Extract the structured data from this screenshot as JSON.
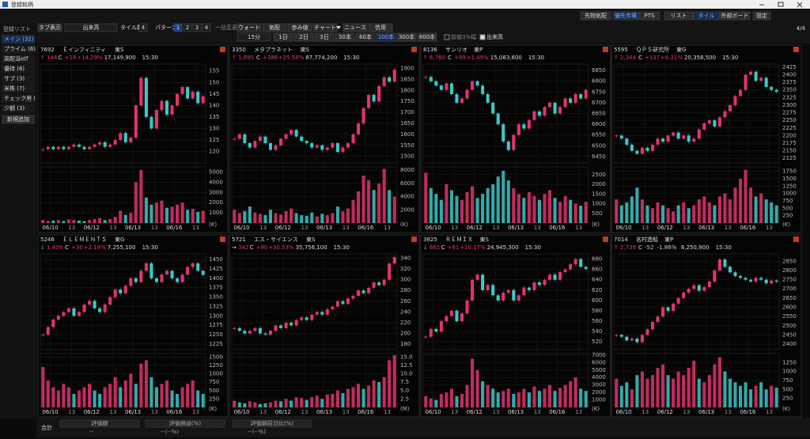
{
  "title_bar": "登録銘柄",
  "toolbar": {
    "right_buttons": [
      "先物気配",
      "優先市場",
      "PTS",
      "リスト",
      "タイル",
      "外部ボード",
      "設定"
    ],
    "tab_display": "タブ表示",
    "tab_select": "出来高",
    "tile_count_label": "タイル数",
    "tile_count": "4",
    "pattern_label": "パターン",
    "patterns": [
      "1",
      "2",
      "3",
      "4"
    ],
    "bulk_label": "一括変更",
    "bulk_buttons": [
      "ウォート",
      "気配",
      "歩み値",
      "チャート",
      "ニュース",
      "信用"
    ],
    "interval": "15分",
    "periods": [
      "1日",
      "2日",
      "3日",
      "30本",
      "60本",
      "100本",
      "300本",
      "600本"
    ],
    "check_prev": "前値3%幅",
    "check_volume": "出来高",
    "page": "4/4"
  },
  "sidebar": {
    "title": "登録リスト",
    "items": [
      "メイン (32)",
      "プライム (6)",
      "高配当etf",
      "優待 (6)",
      "サブ (3)",
      "米株 (7)",
      "チェック用 (",
      "少額 (3)"
    ],
    "add": "新規追加"
  },
  "tiles": [
    {
      "code": "7692",
      "name": "Ｅインフィニティ",
      "market": "東S",
      "arrow": "↑",
      "price": "144",
      "flag": "C",
      "change": "+18",
      "pct": "+14.29%",
      "volume": "17,149,900",
      "time": "15:30",
      "dates": [
        "06/10",
        "13",
        "06/12",
        "13",
        "06/13",
        "13",
        "06/16",
        "13"
      ],
      "volume_unit": "(K)",
      "ylim": [
        115,
        158
      ],
      "yticks": [
        120,
        125,
        130,
        135,
        140,
        145,
        150,
        155
      ],
      "vlim": [
        0,
        5500
      ],
      "vticks": [
        1000,
        2000,
        3000,
        4000,
        5000
      ],
      "close": [
        121,
        122,
        121,
        122,
        121,
        122,
        123,
        122,
        121,
        122,
        123,
        124,
        122,
        123,
        125,
        128,
        124,
        126,
        140,
        152,
        135,
        130,
        138,
        142,
        136,
        140,
        145,
        148,
        143,
        146,
        141,
        144
      ],
      "vol": [
        300,
        200,
        250,
        300,
        200,
        350,
        300,
        250,
        200,
        300,
        400,
        500,
        300,
        400,
        600,
        1200,
        800,
        1000,
        4000,
        5200,
        2500,
        1800,
        2000,
        2200,
        1500,
        1600,
        1800,
        2000,
        1300,
        1400,
        1100,
        1200
      ]
    },
    {
      "code": "3350",
      "name": "メタプラネット",
      "market": "東S",
      "arrow": "↑",
      "price": "1,895",
      "flag": "C",
      "change": "+386",
      "pct": "+25.58%",
      "volume": "87,774,200",
      "time": "15:30",
      "dates": [
        "06/10",
        "13",
        "06/12",
        "13",
        "06/13",
        "13",
        "06/16",
        "13"
      ],
      "volume_unit": "(K)",
      "ylim": [
        1470,
        1920
      ],
      "yticks": [
        1500,
        1550,
        1600,
        1650,
        1700,
        1750,
        1800,
        1850,
        1900
      ],
      "vlim": [
        0,
        8500
      ],
      "vticks": [
        2000,
        4000,
        6000,
        8000
      ],
      "close": [
        1580,
        1600,
        1560,
        1540,
        1570,
        1590,
        1560,
        1530,
        1550,
        1580,
        1600,
        1620,
        1590,
        1570,
        1560,
        1540,
        1550,
        1530,
        1540,
        1560,
        1520,
        1540,
        1560,
        1600,
        1650,
        1720,
        1780,
        1750,
        1820,
        1860,
        1840,
        1895
      ],
      "vol": [
        2000,
        1500,
        1800,
        2500,
        1600,
        1400,
        1200,
        2000,
        1500,
        1300,
        1800,
        2200,
        1500,
        1200,
        1100,
        1600,
        1000,
        1400,
        1200,
        1500,
        2500,
        1800,
        2200,
        3500,
        4800,
        7200,
        6500,
        5000,
        6000,
        8200,
        5000,
        4000
      ]
    },
    {
      "code": "8136",
      "name": "サンリオ",
      "market": "東P",
      "arrow": "↑",
      "price": "6,760",
      "flag": "C",
      "change": "+99",
      "pct": "+1.49%",
      "volume": "15,083,600",
      "time": "15:30",
      "dates": [
        "06/10",
        "13",
        "06/12",
        "13",
        "06/13",
        "13",
        "06/16",
        "13"
      ],
      "volume_unit": "(K)",
      "ylim": [
        6420,
        6880
      ],
      "yticks": [
        6450,
        6500,
        6550,
        6600,
        6650,
        6700,
        6750,
        6800,
        6850
      ],
      "vlim": [
        0,
        2900
      ],
      "vticks": [
        500,
        1000,
        1500,
        2000,
        2500
      ],
      "close": [
        6820,
        6800,
        6780,
        6760,
        6790,
        6740,
        6700,
        6720,
        6760,
        6800,
        6780,
        6740,
        6700,
        6650,
        6600,
        6520,
        6480,
        6550,
        6600,
        6580,
        6620,
        6660,
        6640,
        6680,
        6700,
        6650,
        6680,
        6720,
        6700,
        6740,
        6720,
        6760
      ],
      "vol": [
        2600,
        1800,
        1500,
        1200,
        2000,
        1700,
        1400,
        1200,
        1600,
        1900,
        1300,
        1500,
        1800,
        2000,
        2400,
        2700,
        2200,
        1800,
        1500,
        1300,
        1600,
        1400,
        1200,
        1500,
        1700,
        1300,
        1100,
        1400,
        1200,
        1000,
        900,
        1100
      ]
    },
    {
      "code": "5595",
      "name": "ＱＰＳ研究所",
      "market": "東G",
      "arrow": "↑",
      "price": "2,344",
      "flag": "C",
      "change": "+137",
      "pct": "+6.21%",
      "volume": "20,358,500",
      "time": "15:30",
      "dates": [
        "06/10",
        "13",
        "06/12",
        "13",
        "06/13",
        "13",
        "06/16",
        "13"
      ],
      "volume_unit": "(K)",
      "ylim": [
        2110,
        2435
      ],
      "yticks": [
        2125,
        2150,
        2175,
        2200,
        2225,
        2250,
        2275,
        2300,
        2325,
        2350,
        2375,
        2400,
        2425
      ],
      "vlim": [
        0,
        1900
      ],
      "vticks": [
        250,
        500,
        750,
        1000,
        1250,
        1500,
        1750
      ],
      "close": [
        2200,
        2190,
        2170,
        2150,
        2140,
        2160,
        2150,
        2170,
        2190,
        2180,
        2200,
        2210,
        2190,
        2200,
        2180,
        2190,
        2220,
        2240,
        2250,
        2230,
        2260,
        2280,
        2300,
        2330,
        2350,
        2400,
        2410,
        2380,
        2390,
        2360,
        2350,
        2344
      ],
      "vol": [
        800,
        600,
        700,
        900,
        1200,
        800,
        600,
        500,
        700,
        600,
        500,
        400,
        600,
        700,
        500,
        600,
        800,
        900,
        700,
        600,
        900,
        1000,
        800,
        1200,
        1500,
        1800,
        1200,
        900,
        1000,
        800,
        700,
        600
      ]
    },
    {
      "code": "5246",
      "name": "ＥＬＥＭＥＮＴＳ",
      "market": "東G",
      "arrow": "↓",
      "price": "1,409",
      "flag": "C",
      "change": "+30",
      "pct": "+2.18%",
      "volume": "7,255,100",
      "time": "15:30",
      "dates": [
        "06/10",
        "13",
        "06/12",
        "13",
        "06/13",
        "13",
        "06/16",
        "13"
      ],
      "volume_unit": "(K)",
      "ylim": [
        1210,
        1465
      ],
      "yticks": [
        1225,
        1250,
        1275,
        1300,
        1325,
        1350,
        1375,
        1400,
        1425,
        1450
      ],
      "vlim": [
        0,
        1600
      ],
      "vticks": [
        250,
        500,
        750,
        1000,
        1250,
        1500
      ],
      "close": [
        1250,
        1270,
        1290,
        1300,
        1310,
        1320,
        1300,
        1310,
        1330,
        1340,
        1320,
        1310,
        1330,
        1350,
        1370,
        1360,
        1380,
        1400,
        1390,
        1420,
        1440,
        1400,
        1390,
        1410,
        1420,
        1400,
        1390,
        1410,
        1430,
        1440,
        1420,
        1409
      ],
      "vol": [
        1200,
        800,
        600,
        500,
        700,
        600,
        400,
        500,
        600,
        700,
        500,
        400,
        600,
        700,
        900,
        600,
        800,
        1000,
        700,
        1300,
        1400,
        900,
        600,
        700,
        800,
        500,
        400,
        600,
        700,
        800,
        500,
        400
      ]
    },
    {
      "code": "5721",
      "name": "エス・サイエンス",
      "market": "東S",
      "arrow": "→",
      "price": "342",
      "flag": "C",
      "change": "+80",
      "pct": "+30.53%",
      "volume": "35,756,100",
      "time": "15:30",
      "dates": [
        "06/10",
        "13",
        "06/12",
        "13",
        "06/13",
        "13",
        "06/16",
        "13"
      ],
      "volume_unit": "(M)",
      "ylim": [
        170,
        348
      ],
      "yticks": [
        180,
        200,
        220,
        240,
        260,
        280,
        300,
        320,
        340
      ],
      "vlim": [
        0,
        16
      ],
      "vticks": [
        2.5,
        {
          "value": 5,
          "label": "5.0"
        },
        7.5,
        {
          "value": 10,
          "label": "10.0"
        },
        12.5,
        {
          "value": 15,
          "label": "15.0"
        }
      ],
      "close": [
        210,
        205,
        200,
        205,
        210,
        200,
        198,
        205,
        215,
        210,
        220,
        215,
        225,
        230,
        225,
        235,
        240,
        235,
        245,
        250,
        260,
        255,
        265,
        270,
        280,
        275,
        285,
        295,
        290,
        300,
        330,
        342
      ],
      "vol": [
        2.0,
        1.5,
        1.2,
        1.8,
        1.5,
        1.0,
        1.2,
        1.5,
        2.0,
        1.8,
        2.5,
        2.0,
        3.0,
        2.8,
        2.2,
        3.0,
        3.5,
        2.5,
        3.8,
        4.0,
        5.0,
        4.2,
        5.5,
        6.0,
        7.0,
        5.5,
        6.5,
        8.0,
        7.5,
        9.0,
        14.0,
        15.5
      ]
    },
    {
      "code": "3825",
      "name": "ＲＥＭＩＸ",
      "market": "東S",
      "arrow": "↓",
      "price": "661",
      "flag": "C",
      "change": "+61",
      "pct": "+10.17%",
      "volume": "24,945,300",
      "time": "15:30",
      "dates": [
        "06/10",
        "13",
        "06/12",
        "13",
        "06/13",
        "13",
        "06/16",
        "13"
      ],
      "volume_unit": "(K)",
      "ylim": [
        505,
        690
      ],
      "yticks": [
        520,
        540,
        560,
        580,
        600,
        620,
        640,
        660,
        680
      ],
      "vlim": [
        0,
        7200
      ],
      "vticks": [
        1000,
        2000,
        3000,
        4000,
        5000,
        6000,
        7000
      ],
      "close": [
        530,
        545,
        540,
        560,
        570,
        580,
        560,
        575,
        600,
        640,
        650,
        620,
        630,
        610,
        600,
        615,
        620,
        600,
        610,
        625,
        620,
        635,
        630,
        640,
        650,
        640,
        655,
        660,
        670,
        680,
        665,
        661
      ],
      "vol": [
        1500,
        1200,
        1000,
        1800,
        2000,
        2500,
        1500,
        1800,
        3000,
        6500,
        5000,
        3500,
        3000,
        2500,
        2000,
        2200,
        2500,
        1800,
        2000,
        2500,
        2000,
        2800,
        2200,
        2500,
        3000,
        2200,
        2600,
        3000,
        3500,
        4000,
        2500,
        2200
      ]
    },
    {
      "code": "7014",
      "name": "名村造船",
      "market": "東P",
      "arrow": "↑",
      "price": "2,739",
      "flag": "C",
      "change": "-52",
      "pct": "-1.86%",
      "volume": "8,250,900",
      "time": "15:30",
      "dates": [
        "06/10",
        "13",
        "06/12",
        "13",
        "06/13",
        "13",
        "06/16",
        "13"
      ],
      "volume_unit": "(K)",
      "ylim": [
        2370,
        2890
      ],
      "yticks": [
        2400,
        2450,
        2500,
        2550,
        2600,
        2650,
        2700,
        2750,
        2800,
        2850
      ],
      "vlim": [
        0,
        1500
      ],
      "vticks": [
        250,
        500,
        750,
        1000,
        1250
      ],
      "close": [
        2450,
        2440,
        2420,
        2430,
        2410,
        2450,
        2480,
        2520,
        2550,
        2600,
        2580,
        2620,
        2650,
        2680,
        2700,
        2720,
        2690,
        2710,
        2740,
        2800,
        2860,
        2820,
        2790,
        2770,
        2760,
        2750,
        2740,
        2760,
        2750,
        2730,
        2745,
        2739
      ],
      "vol": [
        800,
        600,
        700,
        500,
        900,
        1000,
        800,
        900,
        1100,
        1200,
        900,
        800,
        1000,
        900,
        1100,
        1300,
        800,
        700,
        900,
        1200,
        1400,
        1000,
        800,
        700,
        600,
        700,
        500,
        600,
        700,
        500,
        600,
        550
      ]
    }
  ],
  "footer": {
    "total": "合計",
    "columns": [
      "評価額",
      "評価損益(%)",
      "評価額前日比(%)"
    ],
    "values": [
      "--",
      "--",
      "(--%)",
      "--",
      "(--%)"
    ]
  }
}
